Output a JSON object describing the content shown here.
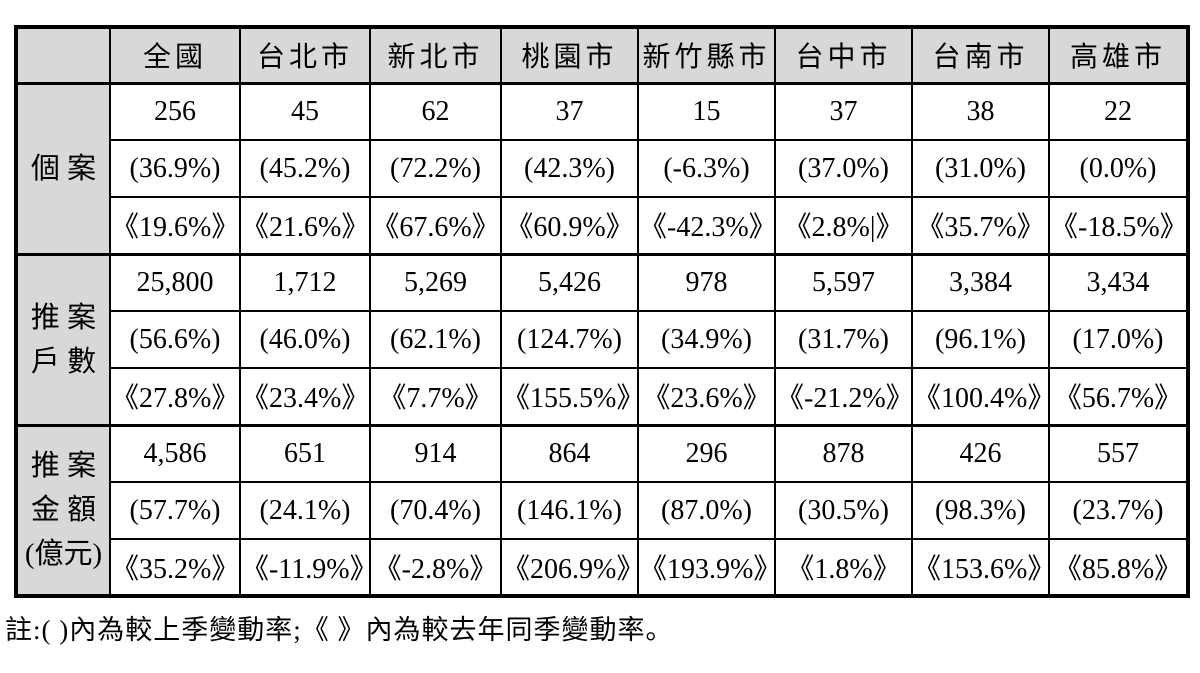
{
  "colors": {
    "header_bg": "#d8d8d8",
    "border": "#000000",
    "text": "#000000",
    "page_bg": "#ffffff"
  },
  "table": {
    "columns": [
      "全國",
      "台北市",
      "新北市",
      "桃園市",
      "新竹縣市",
      "台中市",
      "台南市",
      "高雄市"
    ],
    "groups": [
      {
        "label": "個案",
        "label_lines": [
          "個 案"
        ],
        "rows": [
          [
            "256",
            "45",
            "62",
            "37",
            "15",
            "37",
            "38",
            "22"
          ],
          [
            "(36.9%)",
            "(45.2%)",
            "(72.2%)",
            "(42.3%)",
            "(-6.3%)",
            "(37.0%)",
            "(31.0%)",
            "(0.0%)"
          ],
          [
            "《19.6%》",
            "《21.6%》",
            "《67.6%》",
            "《60.9%》",
            "《-42.3%》",
            "《2.8%|》",
            "《35.7%》",
            "《-18.5%》"
          ]
        ]
      },
      {
        "label": "推案戶數",
        "label_lines": [
          "推 案",
          "戶 數"
        ],
        "rows": [
          [
            "25,800",
            "1,712",
            "5,269",
            "5,426",
            "978",
            "5,597",
            "3,384",
            "3,434"
          ],
          [
            "(56.6%)",
            "(46.0%)",
            "(62.1%)",
            "(124.7%)",
            "(34.9%)",
            "(31.7%)",
            "(96.1%)",
            "(17.0%)"
          ],
          [
            "《27.8%》",
            "《23.4%》",
            "《7.7%》",
            "《155.5%》",
            "《23.6%》",
            "《-21.2%》",
            "《100.4%》",
            "《56.7%》"
          ]
        ]
      },
      {
        "label": "推案金額(億元)",
        "label_lines": [
          "推 案",
          "金 額",
          "(億元)"
        ],
        "rows": [
          [
            "4,586",
            "651",
            "914",
            "864",
            "296",
            "878",
            "426",
            "557"
          ],
          [
            "(57.7%)",
            "(24.1%)",
            "(70.4%)",
            "(146.1%)",
            "(87.0%)",
            "(30.5%)",
            "(98.3%)",
            "(23.7%)"
          ],
          [
            "《35.2%》",
            "《-11.9%》",
            "《-2.8%》",
            "《206.9%》",
            "《193.9%》",
            "《1.8%》",
            "《153.6%》",
            "《85.8%》"
          ]
        ]
      }
    ]
  },
  "note": "註:(  )內為較上季變動率;《  》內為較去年同季變動率。"
}
